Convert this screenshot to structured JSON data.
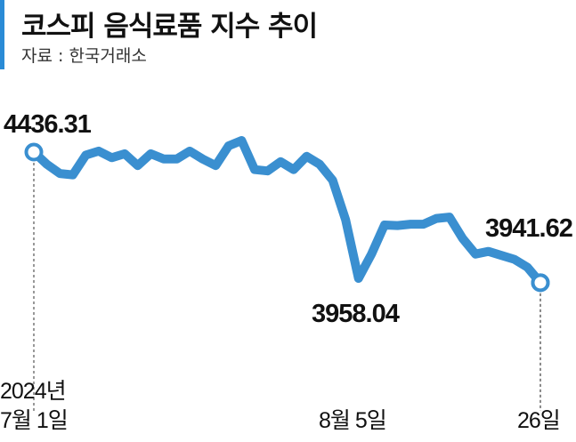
{
  "header": {
    "title": "코스피 음식료품 지수 추이",
    "source": "자료 : 한국거래소"
  },
  "annotations": {
    "start_value": "4436.31",
    "low_value": "3958.04",
    "end_value": "3941.62",
    "start_year": "2024년",
    "start_date": "7월 1일",
    "low_date": "8월 5일",
    "end_date": "26일"
  },
  "colors": {
    "line": "#3a8fd0",
    "accent": "#2a8bd6"
  },
  "chart_data": {
    "type": "line",
    "title": "코스피 음식료품 지수 추이",
    "xlabel": "",
    "ylabel": "",
    "ylim": [
      3900,
      4500
    ],
    "x": [
      "2024-07-01",
      "2024-07-02",
      "2024-07-03",
      "2024-07-04",
      "2024-07-05",
      "2024-07-08",
      "2024-07-09",
      "2024-07-10",
      "2024-07-11",
      "2024-07-12",
      "2024-07-15",
      "2024-07-16",
      "2024-07-17",
      "2024-07-18",
      "2024-07-19",
      "2024-07-22",
      "2024-07-23",
      "2024-07-24",
      "2024-07-25",
      "2024-07-26",
      "2024-07-29",
      "2024-07-30",
      "2024-07-31",
      "2024-08-01",
      "2024-08-02",
      "2024-08-05",
      "2024-08-06",
      "2024-08-07",
      "2024-08-08",
      "2024-08-09",
      "2024-08-12",
      "2024-08-13",
      "2024-08-14",
      "2024-08-16",
      "2024-08-19",
      "2024-08-20",
      "2024-08-21",
      "2024-08-22",
      "2024-08-23",
      "2024-08-26"
    ],
    "series": [
      {
        "values": [
          4436.31,
          4390,
          4355,
          4350,
          4425,
          4440,
          4415,
          4430,
          4385,
          4430,
          4410,
          4410,
          4440,
          4410,
          4385,
          4460,
          4480,
          4370,
          4365,
          4400,
          4370,
          4420,
          4390,
          4330,
          4180,
          3958.04,
          4050,
          4160,
          4158,
          4163,
          4163,
          4185,
          4190,
          4110,
          4050,
          4060,
          4045,
          4030,
          4000,
          3941.62
        ]
      }
    ]
  }
}
